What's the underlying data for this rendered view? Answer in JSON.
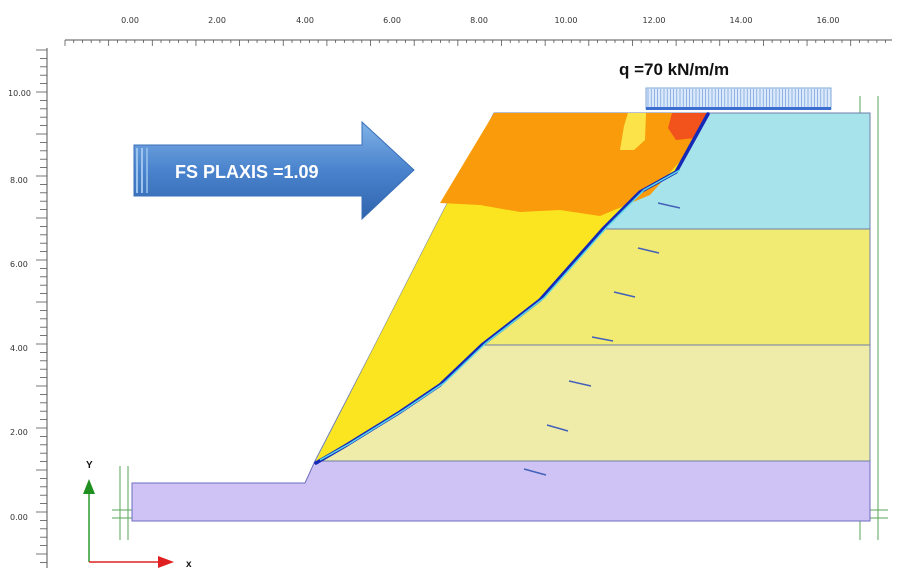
{
  "x_axis_ticks": [
    "0.00",
    "2.00",
    "4.00",
    "6.00",
    "8.00",
    "10.00",
    "12.00",
    "14.00",
    "16.00"
  ],
  "y_axis_ticks": [
    "0.00",
    "2.00",
    "4.00",
    "6.00",
    "8.00",
    "10.00"
  ],
  "load": {
    "label": "q =70 kN/m/m"
  },
  "factor_of_safety": {
    "label": "FS PLAXIS =1.09"
  },
  "axes": {
    "x_label": "x",
    "y_label": "Y"
  },
  "colors": {
    "bedrock": "#cfc3f5",
    "layer_clay": "#efecaa",
    "layer_silt": "#f1ea73",
    "layer_top": "#a7e3ea",
    "wedge_yellow": "#fbe520",
    "wedge_orange": "#f99b0b",
    "hotspot_red": "#f2521c",
    "shear_band": "#1429b8",
    "load_blue": "#b8d4f4",
    "arrow_blue": "#4a83cd"
  }
}
